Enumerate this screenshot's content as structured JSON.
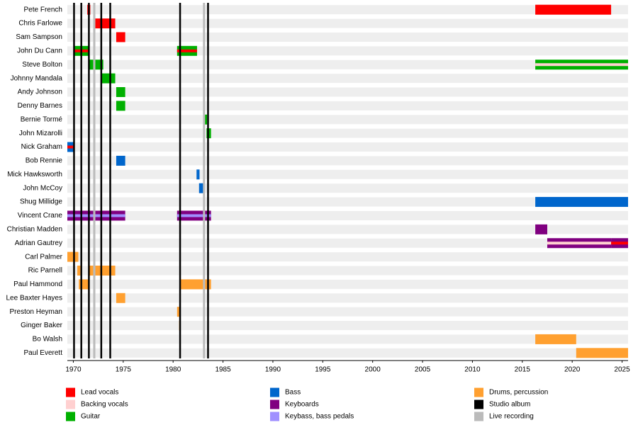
{
  "chart_data": {
    "type": "timeline",
    "xlim": [
      1969.4,
      2025.6
    ],
    "xticks": [
      1970,
      1975,
      1980,
      1985,
      1990,
      1995,
      2000,
      2005,
      2010,
      2015,
      2020,
      2025
    ],
    "roles": [
      {
        "name": "Lead vocals",
        "color": "#ff0000"
      },
      {
        "name": "Backing vocals",
        "color": "#ffd0d0"
      },
      {
        "name": "Guitar",
        "color": "#00b000"
      },
      {
        "name": "Bass",
        "color": "#0066cc"
      },
      {
        "name": "Keyboards",
        "color": "#800080"
      },
      {
        "name": "Keybass, bass pedals",
        "color": "#a090ff"
      },
      {
        "name": "Drums, percussion",
        "color": "#ffa030"
      }
    ],
    "events": [
      {
        "name": "Studio album",
        "color": "#000000",
        "x": [
          1970.07,
          1970.8,
          1971.56,
          1972.8,
          1973.7,
          1980.7,
          1983.5
        ]
      },
      {
        "name": "Live recording",
        "color": "#bbbbbb",
        "x": [
          1972.1,
          1983.1
        ]
      }
    ],
    "members": [
      {
        "name": "Pete French",
        "periods": [
          {
            "start": 1971.4,
            "end": 1971.7,
            "roles": [
              0
            ]
          },
          {
            "start": 2016.3,
            "end": 2023.9,
            "roles": [
              0
            ]
          }
        ]
      },
      {
        "name": "Chris Farlowe",
        "periods": [
          {
            "start": 1972.1,
            "end": 1974.2,
            "roles": [
              0
            ]
          }
        ]
      },
      {
        "name": "Sam Sampson",
        "periods": [
          {
            "start": 1974.3,
            "end": 1975.2,
            "roles": [
              0
            ]
          }
        ]
      },
      {
        "name": "John Du Cann",
        "periods": [
          {
            "start": 1970.1,
            "end": 1971.6,
            "roles": [
              2,
              0
            ]
          },
          {
            "start": 1980.4,
            "end": 1982.4,
            "roles": [
              2,
              0
            ]
          }
        ]
      },
      {
        "name": "Steve Bolton",
        "periods": [
          {
            "start": 1971.6,
            "end": 1973.0,
            "roles": [
              2
            ]
          },
          {
            "start": 2016.3,
            "end": 2025.6,
            "roles": [
              2,
              1
            ]
          }
        ]
      },
      {
        "name": "Johnny Mandala",
        "periods": [
          {
            "start": 1972.8,
            "end": 1974.2,
            "roles": [
              2
            ]
          }
        ]
      },
      {
        "name": "Andy Johnson",
        "periods": [
          {
            "start": 1974.3,
            "end": 1975.2,
            "roles": [
              2
            ]
          }
        ]
      },
      {
        "name": "Denny Barnes",
        "periods": [
          {
            "start": 1974.3,
            "end": 1975.2,
            "roles": [
              2
            ]
          }
        ]
      },
      {
        "name": "Bernie Tormé",
        "periods": [
          {
            "start": 1983.1,
            "end": 1983.4,
            "roles": [
              2
            ]
          }
        ]
      },
      {
        "name": "John Mizarolli",
        "periods": [
          {
            "start": 1983.35,
            "end": 1983.8,
            "roles": [
              2
            ]
          }
        ]
      },
      {
        "name": "Nick Graham",
        "periods": [
          {
            "start": 1969.4,
            "end": 1970.1,
            "roles": [
              3,
              0
            ]
          }
        ]
      },
      {
        "name": "Bob Rennie",
        "periods": [
          {
            "start": 1974.3,
            "end": 1975.2,
            "roles": [
              3
            ]
          }
        ]
      },
      {
        "name": "Mick Hawksworth",
        "periods": [
          {
            "start": 1982.35,
            "end": 1982.65,
            "roles": [
              3
            ]
          }
        ]
      },
      {
        "name": "John McCoy",
        "periods": [
          {
            "start": 1982.6,
            "end": 1983.15,
            "roles": [
              3
            ]
          }
        ]
      },
      {
        "name": "Shug Millidge",
        "periods": [
          {
            "start": 2016.3,
            "end": 2025.6,
            "roles": [
              3
            ]
          }
        ]
      },
      {
        "name": "Vincent Crane",
        "periods": [
          {
            "start": 1969.4,
            "end": 1975.2,
            "roles": [
              4,
              5
            ]
          },
          {
            "start": 1980.4,
            "end": 1983.8,
            "roles": [
              4,
              5
            ]
          }
        ]
      },
      {
        "name": "Christian Madden",
        "periods": [
          {
            "start": 2016.3,
            "end": 2017.5,
            "roles": [
              4
            ]
          }
        ]
      },
      {
        "name": "Adrian Gautrey",
        "periods": [
          {
            "start": 2017.5,
            "end": 2023.9,
            "roles": [
              4,
              1
            ]
          },
          {
            "start": 2023.9,
            "end": 2025.6,
            "roles": [
              4,
              0
            ]
          }
        ]
      },
      {
        "name": "Carl Palmer",
        "periods": [
          {
            "start": 1969.4,
            "end": 1970.5,
            "roles": [
              6
            ]
          }
        ]
      },
      {
        "name": "Ric Parnell",
        "periods": [
          {
            "start": 1970.4,
            "end": 1970.7,
            "roles": [
              6
            ]
          },
          {
            "start": 1971.6,
            "end": 1974.2,
            "roles": [
              6
            ]
          }
        ]
      },
      {
        "name": "Paul Hammond",
        "periods": [
          {
            "start": 1970.55,
            "end": 1971.6,
            "roles": [
              6
            ]
          },
          {
            "start": 1980.7,
            "end": 1983.8,
            "roles": [
              6
            ]
          }
        ]
      },
      {
        "name": "Lee Baxter Hayes",
        "periods": [
          {
            "start": 1974.3,
            "end": 1975.2,
            "roles": [
              6
            ]
          }
        ]
      },
      {
        "name": "Preston Heyman",
        "periods": [
          {
            "start": 1980.4,
            "end": 1980.65,
            "roles": [
              6
            ]
          }
        ]
      },
      {
        "name": "Ginger Baker",
        "periods": [
          {
            "start": 1980.6,
            "end": 1980.75,
            "roles": [
              6
            ]
          }
        ]
      },
      {
        "name": "Bo Walsh",
        "periods": [
          {
            "start": 2016.3,
            "end": 2020.4,
            "roles": [
              6
            ]
          }
        ]
      },
      {
        "name": "Paul Everett",
        "periods": [
          {
            "start": 2020.4,
            "end": 2025.6,
            "roles": [
              6
            ]
          }
        ]
      }
    ]
  }
}
